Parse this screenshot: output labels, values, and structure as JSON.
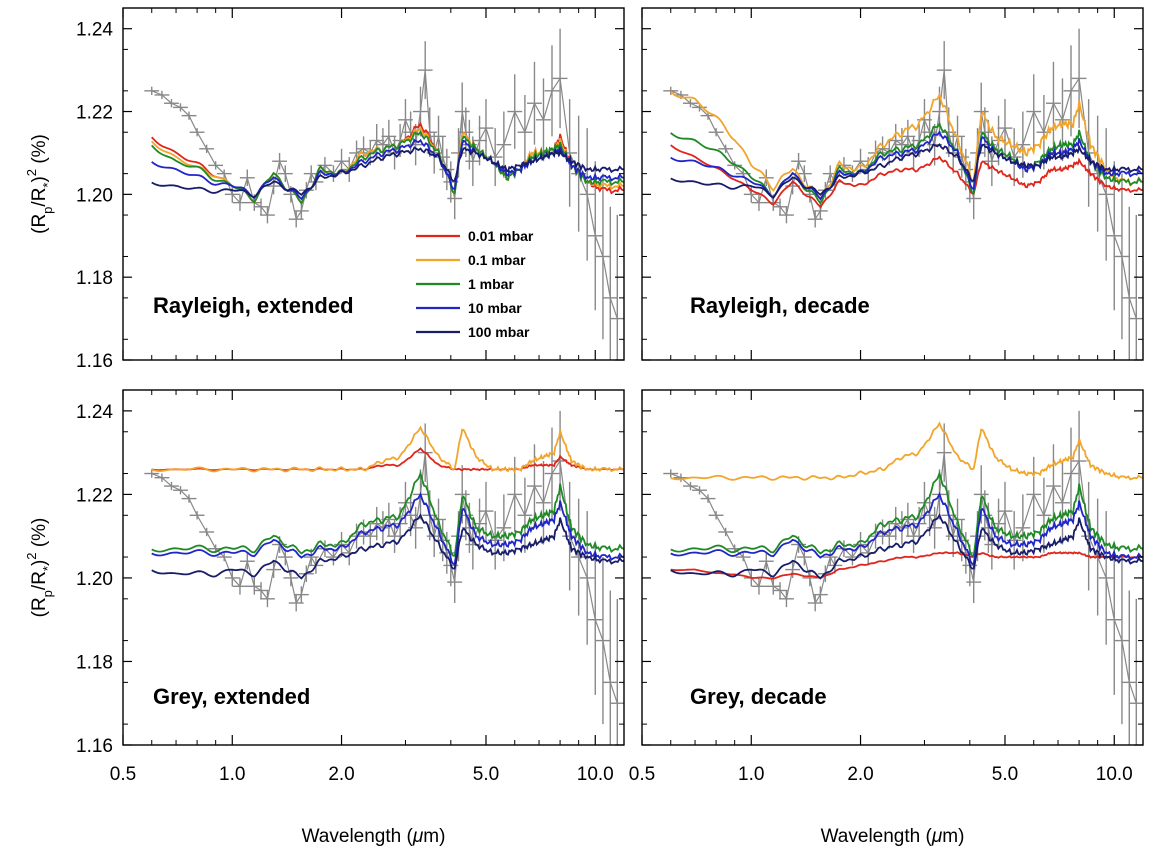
{
  "chart_data": [
    {
      "type": "line",
      "title": "Rayleigh, extended",
      "ylabel_base": "(R",
      "ylabel_sub_p": "p",
      "ylabel_mid": "/R",
      "ylabel_sub_star": "*",
      "ylabel_end": ")",
      "ylabel_sup": "2",
      "ylabel_unit": " (%)",
      "xlabel": "",
      "x_scale": "log",
      "xlim": [
        0.5,
        12.0
      ],
      "ylim": [
        1.16,
        1.245
      ],
      "yticks": [
        "1.16",
        "1.18",
        "1.20",
        "1.22",
        "1.24"
      ],
      "xticks": [],
      "legend": {
        "placement": "center",
        "entries": [
          "0.01 mbar",
          "0.1 mbar",
          "1 mbar",
          "10 mbar",
          "100 mbar"
        ]
      },
      "data_series": {
        "name": "",
        "color": "#888888",
        "x": [
          0.6,
          0.64,
          0.68,
          0.72,
          0.76,
          0.8,
          0.85,
          0.9,
          0.95,
          1.0,
          1.05,
          1.1,
          1.15,
          1.2,
          1.25,
          1.3,
          1.35,
          1.4,
          1.45,
          1.5,
          1.55,
          1.6,
          1.65,
          1.7,
          1.8,
          1.9,
          2.0,
          2.1,
          2.2,
          2.3,
          2.4,
          2.5,
          2.6,
          2.7,
          2.8,
          2.9,
          3.0,
          3.1,
          3.2,
          3.3,
          3.4,
          3.5,
          3.6,
          3.7,
          3.8,
          3.9,
          4.0,
          4.1,
          4.2,
          4.3,
          4.4,
          4.5,
          4.6,
          4.8,
          5.0,
          5.3,
          5.6,
          6.0,
          6.4,
          6.8,
          7.2,
          7.6,
          8.0,
          8.5,
          9.0,
          9.5,
          10.0,
          10.5,
          11.0,
          11.5
        ],
        "y": [
          1.225,
          1.224,
          1.222,
          1.221,
          1.219,
          1.215,
          1.211,
          1.207,
          1.205,
          1.2,
          1.198,
          1.204,
          1.198,
          1.197,
          1.195,
          1.202,
          1.208,
          1.205,
          1.2,
          1.194,
          1.196,
          1.201,
          1.205,
          1.203,
          1.207,
          1.205,
          1.208,
          1.206,
          1.21,
          1.211,
          1.21,
          1.213,
          1.212,
          1.214,
          1.21,
          1.213,
          1.218,
          1.215,
          1.212,
          1.22,
          1.23,
          1.215,
          1.21,
          1.214,
          1.209,
          1.206,
          1.203,
          1.199,
          1.21,
          1.22,
          1.215,
          1.212,
          1.208,
          1.213,
          1.216,
          1.209,
          1.212,
          1.22,
          1.215,
          1.222,
          1.218,
          1.225,
          1.228,
          1.21,
          1.205,
          1.2,
          1.19,
          1.185,
          1.175,
          1.17
        ],
        "yerr": [
          0.001,
          0.001,
          0.001,
          0.001,
          0.001,
          0.001,
          0.001,
          0.001,
          0.001,
          0.002,
          0.002,
          0.002,
          0.002,
          0.002,
          0.002,
          0.002,
          0.002,
          0.002,
          0.002,
          0.002,
          0.002,
          0.002,
          0.002,
          0.002,
          0.002,
          0.002,
          0.003,
          0.003,
          0.003,
          0.003,
          0.003,
          0.004,
          0.004,
          0.004,
          0.004,
          0.004,
          0.005,
          0.005,
          0.005,
          0.006,
          0.007,
          0.006,
          0.005,
          0.005,
          0.005,
          0.005,
          0.005,
          0.005,
          0.006,
          0.007,
          0.006,
          0.006,
          0.006,
          0.006,
          0.007,
          0.007,
          0.008,
          0.009,
          0.009,
          0.01,
          0.01,
          0.011,
          0.012,
          0.013,
          0.014,
          0.016,
          0.018,
          0.02,
          0.022,
          0.025
        ]
      },
      "series": [
        {
          "name": "0.01 mbar",
          "color": "#e0251b",
          "wavy": 1.0,
          "y": [
            1.214,
            1.21,
            1.207,
            1.205,
            1.202,
            1.199,
            1.205,
            1.198,
            1.206,
            1.205,
            1.21,
            1.211,
            1.212,
            1.217,
            1.21,
            1.2,
            1.215,
            1.211,
            1.208,
            1.204,
            1.206,
            1.21,
            1.21,
            1.211,
            1.214,
            1.207,
            1.203,
            1.201,
            1.201
          ]
        },
        {
          "name": "0.1 mbar",
          "color": "#f2a52b",
          "wavy": 1.0,
          "y": [
            1.213,
            1.209,
            1.206,
            1.205,
            1.202,
            1.199,
            1.205,
            1.198,
            1.206,
            1.205,
            1.21,
            1.211,
            1.212,
            1.216,
            1.21,
            1.2,
            1.215,
            1.211,
            1.208,
            1.204,
            1.206,
            1.21,
            1.21,
            1.211,
            1.213,
            1.207,
            1.203,
            1.202,
            1.202
          ]
        },
        {
          "name": "1 mbar",
          "color": "#1e8a25",
          "wavy": 1.0,
          "y": [
            1.212,
            1.208,
            1.206,
            1.204,
            1.202,
            1.199,
            1.205,
            1.198,
            1.206,
            1.205,
            1.209,
            1.211,
            1.212,
            1.215,
            1.21,
            1.2,
            1.214,
            1.211,
            1.208,
            1.204,
            1.206,
            1.209,
            1.21,
            1.211,
            1.212,
            1.207,
            1.203,
            1.203,
            1.203
          ]
        },
        {
          "name": "10 mbar",
          "color": "#2025c8",
          "wavy": 0.9,
          "y": [
            1.208,
            1.206,
            1.204,
            1.203,
            1.202,
            1.2,
            1.204,
            1.199,
            1.205,
            1.205,
            1.208,
            1.21,
            1.211,
            1.213,
            1.209,
            1.201,
            1.213,
            1.21,
            1.208,
            1.205,
            1.206,
            1.208,
            1.209,
            1.21,
            1.211,
            1.207,
            1.204,
            1.204,
            1.204
          ]
        },
        {
          "name": "100 mbar",
          "color": "#171c6b",
          "wavy": 0.8,
          "y": [
            1.203,
            1.202,
            1.201,
            1.201,
            1.201,
            1.2,
            1.203,
            1.2,
            1.204,
            1.205,
            1.207,
            1.209,
            1.21,
            1.211,
            1.209,
            1.203,
            1.211,
            1.21,
            1.208,
            1.206,
            1.207,
            1.208,
            1.209,
            1.21,
            1.21,
            1.208,
            1.206,
            1.206,
            1.206
          ]
        }
      ]
    },
    {
      "type": "line",
      "title": "Rayleigh, decade",
      "xlabel": "",
      "x_scale": "log",
      "xlim": [
        0.5,
        12.0
      ],
      "ylim": [
        1.16,
        1.245
      ],
      "yticks": [],
      "xticks": [],
      "series": [
        {
          "name": "0.01 mbar",
          "color": "#e0251b",
          "wavy": 0.6,
          "y": [
            1.212,
            1.209,
            1.206,
            1.204,
            1.201,
            1.198,
            1.203,
            1.197,
            1.203,
            1.202,
            1.205,
            1.206,
            1.206,
            1.209,
            1.205,
            1.2,
            1.208,
            1.206,
            1.204,
            1.202,
            1.203,
            1.206,
            1.206,
            1.207,
            1.208,
            1.205,
            1.202,
            1.201,
            1.201
          ]
        },
        {
          "name": "0.1 mbar",
          "color": "#f2a52b",
          "wavy": 1.2,
          "y": [
            1.225,
            1.223,
            1.218,
            1.214,
            1.207,
            1.202,
            1.206,
            1.199,
            1.207,
            1.206,
            1.212,
            1.215,
            1.217,
            1.224,
            1.213,
            1.203,
            1.22,
            1.214,
            1.212,
            1.21,
            1.212,
            1.216,
            1.217,
            1.217,
            1.222,
            1.212,
            1.206,
            1.203,
            1.203
          ]
        },
        {
          "name": "1 mbar",
          "color": "#1e8a25",
          "wavy": 1.0,
          "y": [
            1.215,
            1.213,
            1.21,
            1.208,
            1.204,
            1.2,
            1.205,
            1.198,
            1.206,
            1.205,
            1.21,
            1.211,
            1.212,
            1.217,
            1.21,
            1.2,
            1.215,
            1.211,
            1.209,
            1.206,
            1.208,
            1.211,
            1.212,
            1.212,
            1.215,
            1.208,
            1.204,
            1.203,
            1.203
          ]
        },
        {
          "name": "10 mbar",
          "color": "#2025c8",
          "wavy": 0.9,
          "y": [
            1.209,
            1.208,
            1.206,
            1.205,
            1.203,
            1.2,
            1.205,
            1.199,
            1.205,
            1.205,
            1.209,
            1.21,
            1.211,
            1.215,
            1.21,
            1.201,
            1.214,
            1.21,
            1.208,
            1.206,
            1.207,
            1.21,
            1.21,
            1.211,
            1.213,
            1.208,
            1.205,
            1.205,
            1.205
          ]
        },
        {
          "name": "100 mbar",
          "color": "#171c6b",
          "wavy": 0.8,
          "y": [
            1.204,
            1.203,
            1.202,
            1.202,
            1.202,
            1.2,
            1.204,
            1.2,
            1.204,
            1.205,
            1.207,
            1.209,
            1.21,
            1.212,
            1.209,
            1.203,
            1.212,
            1.21,
            1.208,
            1.207,
            1.207,
            1.209,
            1.209,
            1.21,
            1.211,
            1.208,
            1.206,
            1.206,
            1.206
          ]
        }
      ]
    },
    {
      "type": "line",
      "title": "Grey, extended",
      "xlabel": "Wavelength (",
      "xlabel_mu": "μ",
      "xlabel_end": "m)",
      "x_scale": "log",
      "xlim": [
        0.5,
        12.0
      ],
      "ylim": [
        1.16,
        1.245
      ],
      "yticks": [
        "1.16",
        "1.18",
        "1.20",
        "1.22",
        "1.24"
      ],
      "xticks": [
        "0.5",
        "1.0",
        "2.0",
        "5.0",
        "10.0"
      ],
      "series": [
        {
          "name": "0.01 mbar",
          "color": "#e0251b",
          "wavy": 0.25,
          "y": [
            1.226,
            1.226,
            1.226,
            1.226,
            1.226,
            1.226,
            1.226,
            1.226,
            1.226,
            1.226,
            1.226,
            1.227,
            1.227,
            1.231,
            1.227,
            1.226,
            1.226,
            1.226,
            1.226,
            1.226,
            1.226,
            1.227,
            1.227,
            1.227,
            1.229,
            1.227,
            1.226,
            1.226,
            1.226
          ]
        },
        {
          "name": "0.1 mbar",
          "color": "#f2a52b",
          "wavy": 0.6,
          "y": [
            1.226,
            1.226,
            1.226,
            1.226,
            1.226,
            1.226,
            1.226,
            1.226,
            1.226,
            1.226,
            1.226,
            1.228,
            1.229,
            1.236,
            1.229,
            1.226,
            1.236,
            1.229,
            1.226,
            1.226,
            1.226,
            1.228,
            1.229,
            1.23,
            1.235,
            1.228,
            1.226,
            1.226,
            1.226
          ]
        },
        {
          "name": "1 mbar",
          "color": "#1e8a25",
          "wavy": 1.0,
          "y": [
            1.207,
            1.207,
            1.207,
            1.207,
            1.207,
            1.207,
            1.21,
            1.206,
            1.208,
            1.208,
            1.213,
            1.214,
            1.215,
            1.225,
            1.213,
            1.205,
            1.22,
            1.212,
            1.21,
            1.21,
            1.211,
            1.214,
            1.215,
            1.216,
            1.222,
            1.212,
            1.208,
            1.207,
            1.207
          ]
        },
        {
          "name": "10 mbar",
          "color": "#2025c8",
          "wavy": 0.9,
          "y": [
            1.206,
            1.206,
            1.206,
            1.206,
            1.206,
            1.206,
            1.209,
            1.205,
            1.207,
            1.207,
            1.211,
            1.212,
            1.213,
            1.22,
            1.211,
            1.203,
            1.217,
            1.21,
            1.208,
            1.208,
            1.209,
            1.212,
            1.213,
            1.214,
            1.218,
            1.21,
            1.206,
            1.205,
            1.205
          ]
        },
        {
          "name": "100 mbar",
          "color": "#171c6b",
          "wavy": 0.8,
          "y": [
            1.202,
            1.201,
            1.201,
            1.201,
            1.202,
            1.201,
            1.204,
            1.2,
            1.204,
            1.205,
            1.207,
            1.208,
            1.209,
            1.215,
            1.208,
            1.202,
            1.212,
            1.208,
            1.206,
            1.206,
            1.207,
            1.208,
            1.209,
            1.21,
            1.214,
            1.207,
            1.205,
            1.204,
            1.204
          ]
        }
      ]
    },
    {
      "type": "line",
      "title": "Grey, decade",
      "xlabel": "Wavelength (",
      "xlabel_mu": "μ",
      "xlabel_end": "m)",
      "x_scale": "log",
      "xlim": [
        0.5,
        12.0
      ],
      "ylim": [
        1.16,
        1.245
      ],
      "yticks": [],
      "xticks": [
        "0.5",
        "1.0",
        "2.0",
        "5.0",
        "10.0"
      ],
      "series": [
        {
          "name": "0.01 mbar",
          "color": "#e0251b",
          "wavy": 0.2,
          "y": [
            1.202,
            1.202,
            1.201,
            1.201,
            1.2,
            1.2,
            1.201,
            1.2,
            1.202,
            1.203,
            1.204,
            1.205,
            1.205,
            1.206,
            1.206,
            1.205,
            1.206,
            1.205,
            1.205,
            1.205,
            1.205,
            1.206,
            1.206,
            1.206,
            1.206,
            1.205,
            1.205,
            1.205,
            1.205
          ]
        },
        {
          "name": "0.1 mbar",
          "color": "#f2a52b",
          "wavy": 0.6,
          "y": [
            1.224,
            1.224,
            1.224,
            1.224,
            1.224,
            1.224,
            1.224,
            1.224,
            1.224,
            1.225,
            1.226,
            1.229,
            1.23,
            1.237,
            1.229,
            1.226,
            1.236,
            1.229,
            1.226,
            1.225,
            1.225,
            1.227,
            1.228,
            1.229,
            1.233,
            1.227,
            1.225,
            1.224,
            1.224
          ]
        },
        {
          "name": "1 mbar",
          "color": "#1e8a25",
          "wavy": 1.0,
          "y": [
            1.207,
            1.207,
            1.207,
            1.207,
            1.207,
            1.207,
            1.21,
            1.206,
            1.208,
            1.208,
            1.213,
            1.214,
            1.215,
            1.225,
            1.213,
            1.205,
            1.22,
            1.212,
            1.21,
            1.21,
            1.211,
            1.214,
            1.215,
            1.216,
            1.222,
            1.212,
            1.208,
            1.207,
            1.207
          ]
        },
        {
          "name": "10 mbar",
          "color": "#2025c8",
          "wavy": 0.9,
          "y": [
            1.206,
            1.206,
            1.206,
            1.206,
            1.206,
            1.206,
            1.209,
            1.205,
            1.207,
            1.207,
            1.211,
            1.212,
            1.213,
            1.22,
            1.211,
            1.203,
            1.217,
            1.21,
            1.208,
            1.208,
            1.209,
            1.212,
            1.213,
            1.214,
            1.218,
            1.21,
            1.206,
            1.205,
            1.205
          ]
        },
        {
          "name": "100 mbar",
          "color": "#171c6b",
          "wavy": 0.8,
          "y": [
            1.202,
            1.201,
            1.201,
            1.201,
            1.202,
            1.201,
            1.204,
            1.2,
            1.204,
            1.205,
            1.207,
            1.208,
            1.209,
            1.215,
            1.208,
            1.202,
            1.212,
            1.208,
            1.206,
            1.206,
            1.207,
            1.208,
            1.209,
            1.21,
            1.214,
            1.207,
            1.205,
            1.204,
            1.204
          ]
        }
      ]
    }
  ],
  "model_x": [
    0.6,
    0.7,
    0.8,
    0.9,
    1.0,
    1.15,
    1.3,
    1.55,
    1.75,
    2.0,
    2.3,
    2.6,
    2.9,
    3.3,
    3.7,
    4.1,
    4.3,
    4.7,
    5.2,
    5.7,
    6.2,
    6.7,
    7.2,
    7.7,
    8.0,
    8.6,
    9.5,
    10.5,
    12.0
  ]
}
